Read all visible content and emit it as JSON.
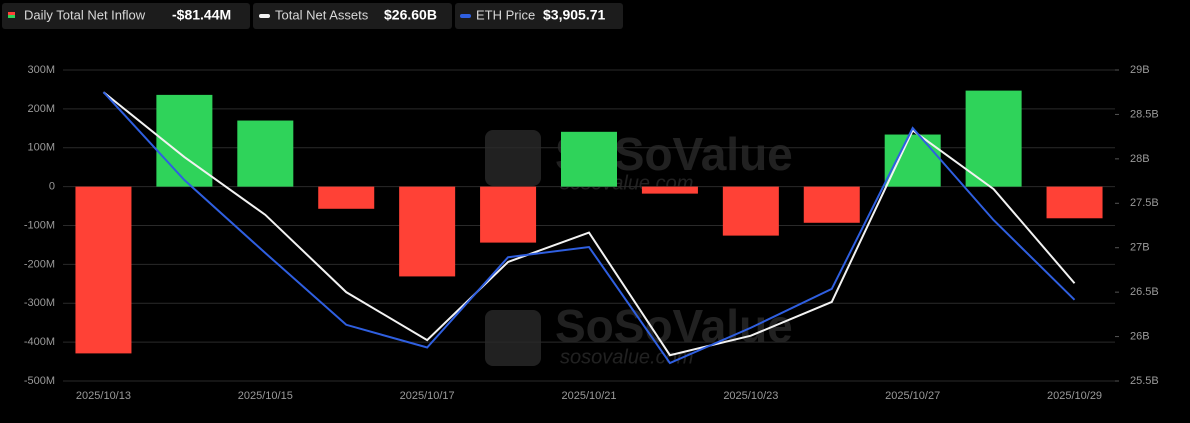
{
  "chart_data": {
    "type": "bar-line",
    "categories": [
      "2025/10/13",
      null,
      "2025/10/15",
      null,
      "2025/10/17",
      null,
      "2025/10/21",
      null,
      "2025/10/23",
      null,
      "2025/10/27",
      null,
      "2025/10/29"
    ],
    "series": [
      {
        "name": "Daily Total Net Inflow",
        "type": "bar",
        "axis": "y",
        "color_positive": "#2fd35a",
        "color_negative": "#ff4136",
        "current": "-$81.44M",
        "values": [
          -429,
          236,
          170,
          -57,
          -231,
          -144,
          141,
          -18,
          -126,
          -93,
          134,
          247,
          -81.44
        ]
      },
      {
        "name": "Total Net Assets",
        "type": "line",
        "axis": "y2",
        "color": "#f2f2f2",
        "current": "$26.60B",
        "values": [
          28.75,
          28.02,
          27.37,
          26.5,
          25.96,
          26.84,
          27.17,
          25.79,
          26.01,
          26.39,
          28.32,
          27.66,
          26.6
        ]
      },
      {
        "name": "ETH Price",
        "type": "line",
        "axis": "y3",
        "color": "#2f5fe0",
        "current": "$3,905.71",
        "values": [
          4253,
          4106,
          3984,
          3864,
          3826,
          3977,
          3994,
          3800,
          3859,
          3924,
          4193,
          4039,
          3905.71
        ]
      }
    ],
    "ylim": [
      -500,
      300
    ],
    "yticks": [
      {
        "value": 300,
        "label": "300M"
      },
      {
        "value": 200,
        "label": "200M"
      },
      {
        "value": 100,
        "label": "100M"
      },
      0,
      {
        "value": -100,
        "label": "-100M"
      },
      {
        "value": -200,
        "label": "-200M"
      },
      {
        "value": -300,
        "label": "-300M"
      },
      {
        "value": -400,
        "label": "-400M"
      },
      {
        "value": -500,
        "label": "-500M"
      }
    ],
    "y2lim": [
      25.5,
      29
    ],
    "y2ticks": [
      {
        "value": 29,
        "label": "29B"
      },
      {
        "value": 28.5,
        "label": "28.5B"
      },
      {
        "value": 28,
        "label": "28B"
      },
      {
        "value": 27.5,
        "label": "27.5B"
      },
      {
        "value": 27,
        "label": "27B"
      },
      {
        "value": 26.5,
        "label": "26.5B"
      },
      {
        "value": 26,
        "label": "26B"
      },
      {
        "value": 25.5,
        "label": "25.5B"
      }
    ],
    "y3lim": [
      3770,
      4290
    ],
    "grid": true,
    "watermark": {
      "brand": "SoSoValue",
      "site": "sosovalue.com"
    }
  }
}
